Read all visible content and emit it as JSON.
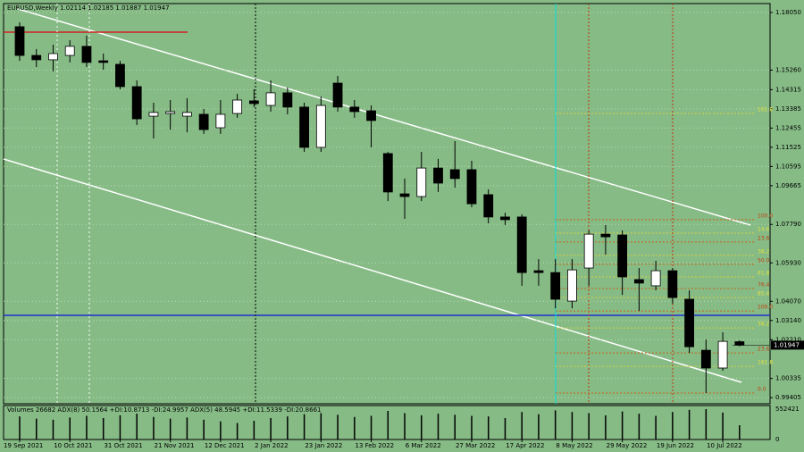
{
  "chart_data": {
    "type": "candlestick",
    "title": "EURUSD,Weekly  1.02114 1.02185 1.01887 1.01947",
    "indicator_title": "Volumes 26682  ADX(8) 50.1564 +DI:10.8713 -DI:24.9957  ADX(5) 48.5945 +DI:11.5339 -DI:20.8661",
    "categories": [
      "19 Sep 2021",
      null,
      null,
      "10 Oct 2021",
      null,
      null,
      "31 Oct 2021",
      null,
      null,
      "21 Nov 2021",
      null,
      null,
      "12 Dec 2021",
      null,
      null,
      "2 Jan 2022",
      null,
      null,
      "23 Jan 2022",
      null,
      null,
      "13 Feb 2022",
      null,
      null,
      "6 Mar 2022",
      null,
      null,
      "27 Mar 2022",
      null,
      null,
      "17 Apr 2022",
      null,
      null,
      "8 May 2022",
      null,
      null,
      "29 May 2022",
      null,
      null,
      "19 Jun 2022",
      null,
      null,
      "10 Jul 2022",
      null
    ],
    "open": [
      1.1736,
      1.1597,
      1.1576,
      1.1597,
      1.1641,
      1.1571,
      1.1554,
      1.1446,
      1.1303,
      1.1316,
      1.1303,
      1.1312,
      1.1247,
      1.1316,
      1.1377,
      1.1355,
      1.1416,
      1.1347,
      1.1152,
      1.1463,
      1.1347,
      1.1329,
      1.1122,
      1.0927,
      1.0914,
      1.1052,
      1.1044,
      1.1044,
      1.0923,
      1.0815,
      1.0815,
      1.0555,
      1.0546,
      1.0408,
      1.0568,
      1.0732,
      1.0728,
      1.0512,
      1.0482,
      1.0555,
      1.0417,
      1.017,
      1.0084,
      1.02114
    ],
    "high": [
      1.1757,
      1.1628,
      1.1649,
      1.1671,
      1.1693,
      1.1606,
      1.1571,
      1.1476,
      1.1368,
      1.1381,
      1.139,
      1.1338,
      1.1381,
      1.1411,
      1.1433,
      1.1476,
      1.1442,
      1.1368,
      1.1398,
      1.1498,
      1.1381,
      1.1355,
      1.113,
      1.1001,
      1.113,
      1.1096,
      1.1182,
      1.1087,
      1.0949,
      1.0836,
      1.0828,
      1.0611,
      1.0611,
      1.0611,
      1.075,
      1.0776,
      1.075,
      1.0568,
      1.0603,
      1.0568,
      1.046,
      1.0222,
      1.0257,
      1.02185
    ],
    "low": [
      1.1571,
      1.1541,
      1.152,
      1.1563,
      1.1541,
      1.1528,
      1.1433,
      1.126,
      1.1195,
      1.1238,
      1.1225,
      1.1217,
      1.1217,
      1.1295,
      1.1347,
      1.1325,
      1.1312,
      1.113,
      1.113,
      1.1325,
      1.1295,
      1.1152,
      1.0892,
      1.0806,
      1.0892,
      1.0936,
      1.0957,
      1.0862,
      1.0784,
      1.0776,
      1.0482,
      1.0482,
      1.0373,
      1.0373,
      1.0482,
      1.0633,
      1.0438,
      1.036,
      1.046,
      1.0395,
      1.0157,
      0.9963,
      1.0071,
      1.01887
    ],
    "close": [
      1.1597,
      1.1576,
      1.1606,
      1.1641,
      1.1563,
      1.1563,
      1.1446,
      1.129,
      1.1321,
      1.1325,
      1.1321,
      1.1238,
      1.1312,
      1.1381,
      1.1364,
      1.1416,
      1.1347,
      1.1152,
      1.1355,
      1.1347,
      1.1325,
      1.1282,
      1.0936,
      1.0914,
      1.1052,
      1.0979,
      1.1001,
      1.0879,
      1.0815,
      1.0802,
      1.0546,
      1.0546,
      1.0417,
      1.0559,
      1.0732,
      1.0719,
      1.0525,
      1.0495,
      1.0555,
      1.0425,
      1.0187,
      1.0084,
      1.0213,
      1.01947
    ],
    "volumes": [
      420000,
      380000,
      360000,
      400000,
      430000,
      390000,
      440000,
      470000,
      410000,
      380000,
      400000,
      360000,
      330000,
      300000,
      340000,
      390000,
      420000,
      460000,
      480000,
      450000,
      410000,
      430000,
      520000,
      480000,
      440000,
      470000,
      450000,
      430000,
      420000,
      390000,
      500000,
      460000,
      530000,
      500000,
      480000,
      440000,
      510000,
      470000,
      430000,
      500000,
      540000,
      552421,
      490000,
      260000
    ],
    "ylim": [
      0.9911,
      1.1848
    ],
    "yticks": [
      {
        "value": 1.1805,
        "label": "1.18050"
      },
      {
        "value": 1.1526,
        "label": "1.15260"
      },
      {
        "value": 1.14315,
        "label": "1.14315"
      },
      {
        "value": 1.13385,
        "label": "1.13385"
      },
      {
        "value": 1.12455,
        "label": "1.12455"
      },
      {
        "value": 1.11525,
        "label": "1.11525"
      },
      {
        "value": 1.10595,
        "label": "1.10595"
      },
      {
        "value": 1.09665,
        "label": "1.09665"
      },
      {
        "value": 1.0779,
        "label": "1.07790"
      },
      {
        "value": 1.0593,
        "label": "1.05930"
      },
      {
        "value": 1.0407,
        "label": "1.04070"
      },
      {
        "value": 1.0314,
        "label": "1.03140"
      },
      {
        "value": 1.0221,
        "label": "1.02210"
      },
      {
        "value": 1.00335,
        "label": "1.00335"
      },
      {
        "value": 0.99405,
        "label": "0.99405"
      }
    ],
    "current_price": 1.01947,
    "volume_lim": [
      0,
      552421
    ],
    "volume_ticks": [
      0,
      552421
    ],
    "fib_labels": [
      {
        "text": "161.8",
        "price": 1.1316
      },
      {
        "text": "100.0",
        "price": 1.0802
      },
      {
        "text": "14.6",
        "price": 1.0737
      },
      {
        "text": "23.6",
        "price": 1.0694
      },
      {
        "text": "38.2",
        "price": 1.0629
      },
      {
        "text": "50.0",
        "price": 1.0586
      },
      {
        "text": "61.8",
        "price": 1.0525
      },
      {
        "text": "76.4",
        "price": 1.0469
      },
      {
        "text": "85.4",
        "price": 1.0425
      },
      {
        "text": "100.0",
        "price": 1.036
      },
      {
        "text": "38.2",
        "price": 1.0278
      },
      {
        "text": "23.6",
        "price": 1.0157
      },
      {
        "text": "161.8",
        "price": 1.0092
      },
      {
        "text": "0.0",
        "price": 0.9963
      }
    ],
    "colors": {
      "background": "#86bb86",
      "up": "#ffffff",
      "down": "#000000",
      "grid": "#b9d9b0"
    },
    "grid": true
  }
}
